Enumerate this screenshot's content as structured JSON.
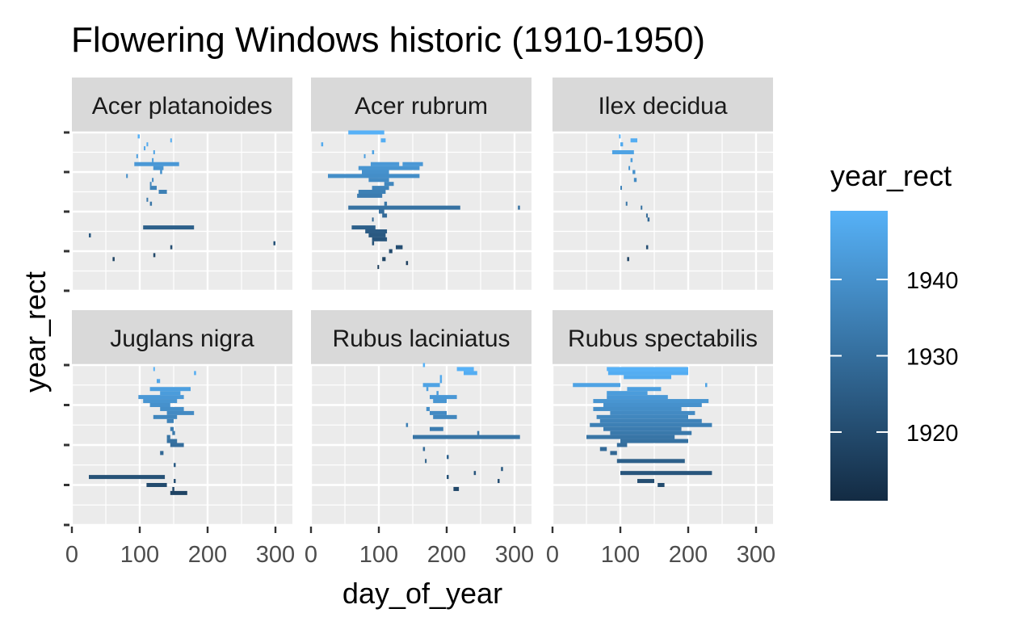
{
  "colors": {
    "panel_bg": "#ebebeb",
    "strip_bg": "#d9d9d9",
    "grid": "#ffffff",
    "legend_low": "#132b43",
    "legend_high": "#56b1f7"
  },
  "chart_data": {
    "type": "faceted-range",
    "title": "Flowering Windows historic (1910-1950)",
    "xlabel": "day_of_year",
    "ylabel": "year_rect",
    "xlim": [
      0,
      325
    ],
    "x_ticks": [
      0,
      100,
      200,
      300
    ],
    "ylim": [
      1910,
      1950
    ],
    "grid": true,
    "legend": {
      "title": "year_rect",
      "position": "right",
      "range": [
        1911,
        1949
      ],
      "ticks": [
        1920,
        1930,
        1940
      ]
    },
    "facets": [
      {
        "name": "Acer platanoides",
        "segments": [
          {
            "year": 1949,
            "start": 97,
            "end": 100
          },
          {
            "year": 1948,
            "start": 145,
            "end": 147
          },
          {
            "year": 1947,
            "start": 110,
            "end": 112
          },
          {
            "year": 1946,
            "start": 106,
            "end": 108
          },
          {
            "year": 1945,
            "start": 120,
            "end": 122
          },
          {
            "year": 1944,
            "start": 95,
            "end": 97
          },
          {
            "year": 1943,
            "start": 118,
            "end": 120
          },
          {
            "year": 1942,
            "start": 92,
            "end": 158
          },
          {
            "year": 1941,
            "start": 120,
            "end": 135
          },
          {
            "year": 1940,
            "start": 130,
            "end": 133
          },
          {
            "year": 1939,
            "start": 80,
            "end": 82
          },
          {
            "year": 1938,
            "start": 118,
            "end": 120
          },
          {
            "year": 1937,
            "start": 115,
            "end": 117
          },
          {
            "year": 1936,
            "start": 115,
            "end": 125
          },
          {
            "year": 1935,
            "start": 128,
            "end": 140
          },
          {
            "year": 1933,
            "start": 110,
            "end": 112
          },
          {
            "year": 1932,
            "start": 115,
            "end": 118
          },
          {
            "year": 1926,
            "start": 105,
            "end": 180
          },
          {
            "year": 1924,
            "start": 25,
            "end": 28
          },
          {
            "year": 1922,
            "start": 297,
            "end": 300
          },
          {
            "year": 1921,
            "start": 145,
            "end": 148
          },
          {
            "year": 1919,
            "start": 120,
            "end": 123
          },
          {
            "year": 1918,
            "start": 60,
            "end": 63
          }
        ]
      },
      {
        "name": "Acer rubrum",
        "segments": [
          {
            "year": 1950,
            "start": 55,
            "end": 108
          },
          {
            "year": 1948,
            "start": 103,
            "end": 110
          },
          {
            "year": 1947,
            "start": 15,
            "end": 18
          },
          {
            "year": 1945,
            "start": 90,
            "end": 93
          },
          {
            "year": 1944,
            "start": 78,
            "end": 80
          },
          {
            "year": 1942,
            "start": 88,
            "end": 130
          },
          {
            "year": 1942,
            "start": 135,
            "end": 165
          },
          {
            "year": 1941,
            "start": 70,
            "end": 160
          },
          {
            "year": 1940,
            "start": 75,
            "end": 115
          },
          {
            "year": 1939,
            "start": 25,
            "end": 160
          },
          {
            "year": 1938,
            "start": 85,
            "end": 115
          },
          {
            "year": 1937,
            "start": 108,
            "end": 122
          },
          {
            "year": 1936,
            "start": 90,
            "end": 115
          },
          {
            "year": 1935,
            "start": 70,
            "end": 110
          },
          {
            "year": 1934,
            "start": 68,
            "end": 105
          },
          {
            "year": 1932,
            "start": 108,
            "end": 112
          },
          {
            "year": 1931,
            "start": 55,
            "end": 220
          },
          {
            "year": 1931,
            "start": 305,
            "end": 308
          },
          {
            "year": 1930,
            "start": 100,
            "end": 108
          },
          {
            "year": 1929,
            "start": 105,
            "end": 112
          },
          {
            "year": 1928,
            "start": 90,
            "end": 92
          },
          {
            "year": 1926,
            "start": 60,
            "end": 95
          },
          {
            "year": 1925,
            "start": 80,
            "end": 112
          },
          {
            "year": 1924,
            "start": 85,
            "end": 110
          },
          {
            "year": 1923,
            "start": 90,
            "end": 112
          },
          {
            "year": 1922,
            "start": 90,
            "end": 93
          },
          {
            "year": 1921,
            "start": 125,
            "end": 135
          },
          {
            "year": 1920,
            "start": 115,
            "end": 120
          },
          {
            "year": 1918,
            "start": 105,
            "end": 110
          },
          {
            "year": 1917,
            "start": 140,
            "end": 143
          },
          {
            "year": 1916,
            "start": 98,
            "end": 100
          }
        ]
      },
      {
        "name": "Ilex decidua",
        "segments": [
          {
            "year": 1949,
            "start": 98,
            "end": 100
          },
          {
            "year": 1948,
            "start": 115,
            "end": 125
          },
          {
            "year": 1947,
            "start": 100,
            "end": 104
          },
          {
            "year": 1945,
            "start": 88,
            "end": 120
          },
          {
            "year": 1943,
            "start": 115,
            "end": 118
          },
          {
            "year": 1941,
            "start": 112,
            "end": 114
          },
          {
            "year": 1940,
            "start": 118,
            "end": 122
          },
          {
            "year": 1938,
            "start": 120,
            "end": 124
          },
          {
            "year": 1936,
            "start": 100,
            "end": 102
          },
          {
            "year": 1932,
            "start": 108,
            "end": 110
          },
          {
            "year": 1931,
            "start": 130,
            "end": 132
          },
          {
            "year": 1929,
            "start": 138,
            "end": 140
          },
          {
            "year": 1928,
            "start": 140,
            "end": 143
          },
          {
            "year": 1921,
            "start": 138,
            "end": 141
          },
          {
            "year": 1918,
            "start": 110,
            "end": 113
          }
        ]
      },
      {
        "name": "Juglans nigra",
        "segments": [
          {
            "year": 1949,
            "start": 120,
            "end": 122
          },
          {
            "year": 1948,
            "start": 180,
            "end": 183
          },
          {
            "year": 1946,
            "start": 125,
            "end": 130
          },
          {
            "year": 1944,
            "start": 115,
            "end": 175
          },
          {
            "year": 1943,
            "start": 130,
            "end": 160
          },
          {
            "year": 1942,
            "start": 98,
            "end": 165
          },
          {
            "year": 1941,
            "start": 105,
            "end": 155
          },
          {
            "year": 1940,
            "start": 115,
            "end": 145
          },
          {
            "year": 1939,
            "start": 130,
            "end": 165
          },
          {
            "year": 1938,
            "start": 140,
            "end": 180
          },
          {
            "year": 1937,
            "start": 120,
            "end": 155
          },
          {
            "year": 1936,
            "start": 140,
            "end": 150
          },
          {
            "year": 1934,
            "start": 145,
            "end": 150
          },
          {
            "year": 1933,
            "start": 148,
            "end": 152
          },
          {
            "year": 1932,
            "start": 140,
            "end": 145
          },
          {
            "year": 1931,
            "start": 140,
            "end": 155
          },
          {
            "year": 1930,
            "start": 145,
            "end": 165
          },
          {
            "year": 1928,
            "start": 130,
            "end": 135
          },
          {
            "year": 1925,
            "start": 150,
            "end": 153
          },
          {
            "year": 1922,
            "start": 25,
            "end": 137
          },
          {
            "year": 1921,
            "start": 150,
            "end": 153
          },
          {
            "year": 1920,
            "start": 110,
            "end": 140
          },
          {
            "year": 1919,
            "start": 148,
            "end": 151
          },
          {
            "year": 1918,
            "start": 145,
            "end": 170
          }
        ]
      },
      {
        "name": "Rubus laciniatus",
        "segments": [
          {
            "year": 1950,
            "start": 165,
            "end": 168
          },
          {
            "year": 1949,
            "start": 215,
            "end": 240
          },
          {
            "year": 1948,
            "start": 225,
            "end": 245
          },
          {
            "year": 1947,
            "start": 190,
            "end": 193
          },
          {
            "year": 1946,
            "start": 190,
            "end": 193
          },
          {
            "year": 1945,
            "start": 165,
            "end": 190
          },
          {
            "year": 1944,
            "start": 170,
            "end": 173
          },
          {
            "year": 1943,
            "start": 185,
            "end": 188
          },
          {
            "year": 1942,
            "start": 175,
            "end": 215
          },
          {
            "year": 1941,
            "start": 180,
            "end": 200
          },
          {
            "year": 1939,
            "start": 170,
            "end": 175
          },
          {
            "year": 1938,
            "start": 175,
            "end": 200
          },
          {
            "year": 1937,
            "start": 180,
            "end": 215
          },
          {
            "year": 1935,
            "start": 140,
            "end": 143
          },
          {
            "year": 1934,
            "start": 175,
            "end": 195
          },
          {
            "year": 1933,
            "start": 245,
            "end": 248
          },
          {
            "year": 1932,
            "start": 150,
            "end": 308
          },
          {
            "year": 1929,
            "start": 165,
            "end": 168
          },
          {
            "year": 1927,
            "start": 200,
            "end": 203
          },
          {
            "year": 1926,
            "start": 168,
            "end": 170
          },
          {
            "year": 1924,
            "start": 280,
            "end": 283
          },
          {
            "year": 1923,
            "start": 240,
            "end": 243
          },
          {
            "year": 1922,
            "start": 200,
            "end": 203
          },
          {
            "year": 1921,
            "start": 275,
            "end": 278
          },
          {
            "year": 1919,
            "start": 210,
            "end": 218
          }
        ]
      },
      {
        "name": "Rubus spectabilis",
        "segments": [
          {
            "year": 1949,
            "start": 80,
            "end": 200
          },
          {
            "year": 1948,
            "start": 82,
            "end": 200
          },
          {
            "year": 1947,
            "start": 105,
            "end": 175
          },
          {
            "year": 1945,
            "start": 225,
            "end": 228
          },
          {
            "year": 1945,
            "start": 30,
            "end": 100
          },
          {
            "year": 1944,
            "start": 110,
            "end": 160
          },
          {
            "year": 1943,
            "start": 80,
            "end": 140
          },
          {
            "year": 1942,
            "start": 80,
            "end": 170
          },
          {
            "year": 1941,
            "start": 60,
            "end": 230
          },
          {
            "year": 1940,
            "start": 75,
            "end": 220
          },
          {
            "year": 1939,
            "start": 60,
            "end": 190
          },
          {
            "year": 1938,
            "start": 85,
            "end": 210
          },
          {
            "year": 1937,
            "start": 65,
            "end": 200
          },
          {
            "year": 1936,
            "start": 70,
            "end": 220
          },
          {
            "year": 1935,
            "start": 55,
            "end": 235
          },
          {
            "year": 1934,
            "start": 75,
            "end": 190
          },
          {
            "year": 1933,
            "start": 85,
            "end": 205
          },
          {
            "year": 1932,
            "start": 50,
            "end": 180
          },
          {
            "year": 1931,
            "start": 100,
            "end": 200
          },
          {
            "year": 1930,
            "start": 95,
            "end": 110
          },
          {
            "year": 1929,
            "start": 70,
            "end": 80
          },
          {
            "year": 1928,
            "start": 85,
            "end": 95
          },
          {
            "year": 1926,
            "start": 95,
            "end": 195
          },
          {
            "year": 1923,
            "start": 100,
            "end": 235
          },
          {
            "year": 1921,
            "start": 125,
            "end": 150
          },
          {
            "year": 1920,
            "start": 155,
            "end": 165
          }
        ]
      }
    ]
  }
}
